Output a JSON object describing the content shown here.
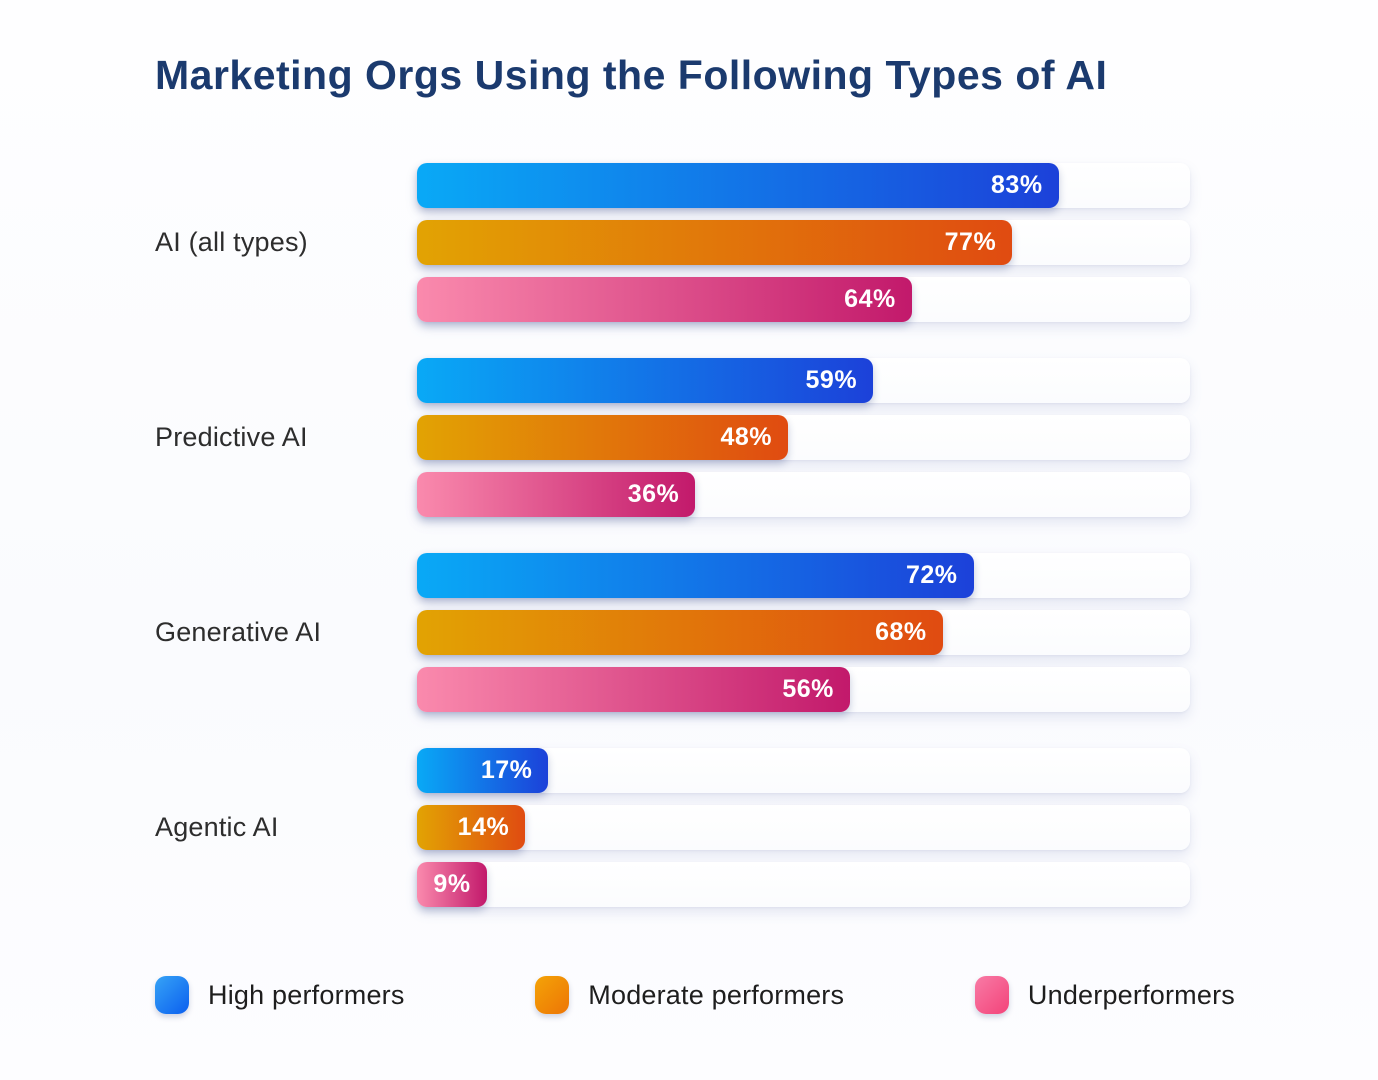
{
  "title": "Marketing Orgs Using the Following Types of AI",
  "colors": {
    "title_text": "#1B3A6E",
    "category_text": "#2D2D2D",
    "value_text": "#FFFFFF",
    "track": "#FFFFFF",
    "legend_text": "#1E1E1E"
  },
  "chart_data": {
    "type": "bar",
    "orientation": "horizontal",
    "title": "Marketing Orgs Using the Following Types of AI",
    "xlabel": "",
    "ylabel": "",
    "xlim": [
      0,
      100
    ],
    "grid": false,
    "legend_position": "bottom",
    "value_suffix": "%",
    "categories": [
      "AI (all types)",
      "Predictive AI",
      "Generative AI",
      "Agentic AI"
    ],
    "series": [
      {
        "name": "High performers",
        "values": [
          83,
          59,
          72,
          17
        ],
        "bar_gradient_start": "#09A9F6",
        "bar_gradient_end": "#1C41D9",
        "legend_gradient_start": "#36A3F6",
        "legend_gradient_end": "#0B5FEF"
      },
      {
        "name": "Moderate performers",
        "values": [
          77,
          48,
          68,
          14
        ],
        "bar_gradient_start": "#E2A303",
        "bar_gradient_end": "#E04B11",
        "legend_gradient_start": "#F4A307",
        "legend_gradient_end": "#ED7506"
      },
      {
        "name": "Underperformers",
        "values": [
          64,
          36,
          56,
          9
        ],
        "bar_gradient_start": "#FA8AAD",
        "bar_gradient_end": "#C2196B",
        "legend_gradient_start": "#F87BA6",
        "legend_gradient_end": "#F34379"
      }
    ]
  }
}
